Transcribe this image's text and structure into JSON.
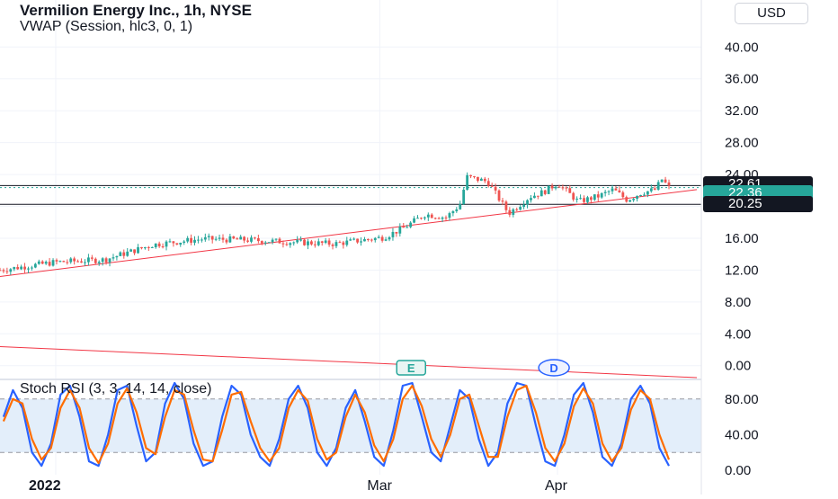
{
  "header": {
    "symbol_title": "Vermilion Energy Inc., 1h, NYSE",
    "indicator_title": "VWAP (Session, hlc3, 0, 1)",
    "currency_button": "USD"
  },
  "oscillator": {
    "title": "Stoch RSI (3, 3, 14, 14, close)"
  },
  "price_tags": [
    {
      "value": "22.61",
      "color": "#131722"
    },
    {
      "value": "22.36",
      "color": "#26a69a"
    },
    {
      "value": "20.25",
      "color": "#131722"
    }
  ],
  "event_markers": [
    {
      "label": "E",
      "color": "#26a69a"
    },
    {
      "label": "D",
      "color": "#2962ff"
    }
  ],
  "colors": {
    "up": "#26a69a",
    "down": "#ef5350",
    "trendline": "#f23645",
    "stoch_k": "#2962ff",
    "stoch_d": "#ff6d00",
    "stoch_band": "#e3eefa"
  },
  "chart_data": [
    {
      "type": "candlestick",
      "title": "Vermilion Energy Inc., 1h, NYSE",
      "x_ticks": [
        "2022",
        "Mar",
        "Apr"
      ],
      "y_ticks": [
        0,
        4,
        8,
        12,
        16,
        20,
        24,
        28,
        32,
        36,
        40
      ],
      "y_tick_labels": [
        "0.00",
        "4.00",
        "8.00",
        "12.00",
        "16.00",
        "20.00",
        "24.00",
        "28.00",
        "32.00",
        "36.00",
        "40.00"
      ],
      "ylim": [
        -1.5,
        45
      ],
      "series": [
        {
          "type": "line",
          "x": [
            0,
            0.08,
            0.15,
            0.22,
            0.29,
            0.35,
            0.42,
            0.48,
            0.55,
            0.58,
            0.59,
            0.61,
            0.64,
            0.66,
            0.67,
            0.7,
            0.73,
            0.76,
            0.78,
            0.8,
            0.83,
            0.86,
            0.88,
            0.9,
            0.92,
            0.94,
            0.95,
            0.96
          ],
          "y": [
            12.0,
            13.0,
            13.3,
            15.2,
            15.9,
            15.8,
            15.5,
            15.3,
            16.1,
            17.3,
            17.9,
            19.0,
            18.6,
            20.2,
            23.7,
            23.1,
            19.1,
            21.2,
            21.8,
            22.9,
            20.6,
            21.3,
            22.1,
            20.8,
            21.7,
            22.1,
            23.4,
            22.36
          ]
        }
      ],
      "horizontal_lines": [
        22.61,
        20.25
      ],
      "trendlines": [
        {
          "from": [
            0,
            11.2
          ],
          "to": [
            1,
            22.1
          ]
        },
        {
          "from": [
            0,
            2.4
          ],
          "to": [
            1,
            -1.5
          ]
        }
      ],
      "last_price": 22.36
    },
    {
      "type": "line",
      "title": "Stoch RSI (3, 3, 14, 14, close)",
      "y_ticks": [
        0,
        40,
        80
      ],
      "y_tick_labels": [
        "0.00",
        "40.00",
        "80.00"
      ],
      "bands": [
        20,
        80
      ],
      "ylim": [
        -5,
        100
      ],
      "series": [
        {
          "name": "%K",
          "values": [
            60,
            90,
            70,
            20,
            5,
            30,
            85,
            95,
            60,
            10,
            5,
            40,
            90,
            95,
            50,
            10,
            20,
            75,
            98,
            80,
            30,
            5,
            10,
            60,
            95,
            85,
            40,
            15,
            5,
            35,
            80,
            95,
            70,
            20,
            5,
            25,
            70,
            90,
            55,
            15,
            5,
            45,
            95,
            98,
            60,
            20,
            10,
            50,
            90,
            80,
            35,
            5,
            20,
            75,
            98,
            95,
            50,
            10,
            5,
            40,
            85,
            98,
            65,
            15,
            5,
            30,
            80,
            95,
            75,
            25,
            5
          ]
        },
        {
          "name": "%D",
          "values": [
            55,
            80,
            75,
            35,
            12,
            25,
            70,
            90,
            70,
            25,
            8,
            30,
            75,
            92,
            65,
            25,
            18,
            60,
            90,
            85,
            45,
            12,
            10,
            45,
            85,
            88,
            55,
            25,
            10,
            25,
            70,
            90,
            78,
            35,
            12,
            20,
            60,
            85,
            65,
            28,
            10,
            35,
            80,
            95,
            72,
            35,
            15,
            40,
            80,
            85,
            50,
            15,
            15,
            60,
            90,
            95,
            65,
            25,
            10,
            30,
            72,
            92,
            75,
            30,
            10,
            25,
            68,
            90,
            80,
            40,
            12
          ]
        }
      ]
    }
  ]
}
